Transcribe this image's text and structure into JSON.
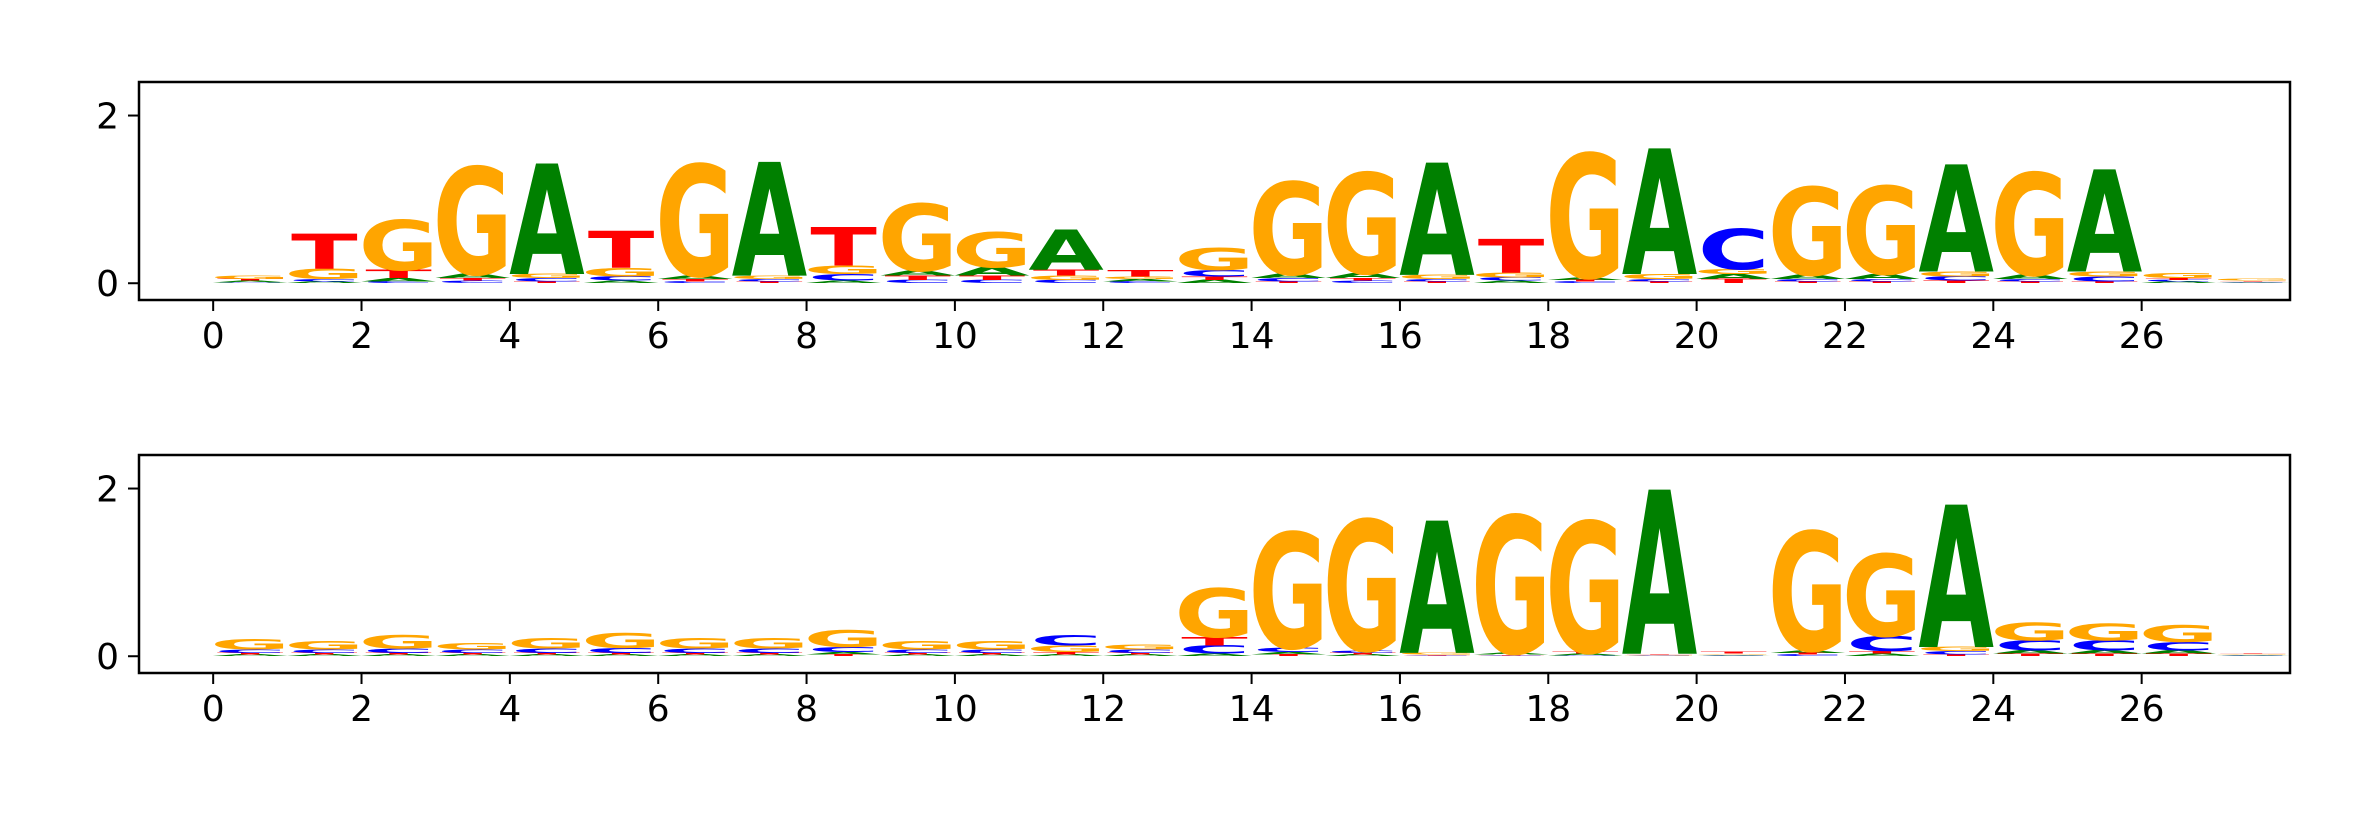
{
  "colors": {
    "A": "#008000",
    "C": "#0000ff",
    "G": "#ffa500",
    "T": "#ff0000"
  },
  "chart_data": [
    {
      "type": "sequence-logo",
      "xlim": [
        -1,
        28
      ],
      "ylim": [
        -0.2,
        2.4
      ],
      "yticks": [
        {
          "value": 0,
          "label": "0"
        },
        {
          "value": 2,
          "label": "2"
        }
      ],
      "xticks": [
        {
          "value": 0,
          "label": "0"
        },
        {
          "value": 2,
          "label": "2"
        },
        {
          "value": 4,
          "label": "4"
        },
        {
          "value": 6,
          "label": "6"
        },
        {
          "value": 8,
          "label": "8"
        },
        {
          "value": 10,
          "label": "10"
        },
        {
          "value": 12,
          "label": "12"
        },
        {
          "value": 14,
          "label": "14"
        },
        {
          "value": 16,
          "label": "16"
        },
        {
          "value": 18,
          "label": "18"
        },
        {
          "value": 20,
          "label": "20"
        },
        {
          "value": 22,
          "label": "22"
        },
        {
          "value": 24,
          "label": "24"
        },
        {
          "value": 26,
          "label": "26"
        }
      ],
      "positions": [
        {
          "A": 0.02,
          "C": 0.01,
          "G": 0.04,
          "T": 0.02
        },
        {
          "A": 0.02,
          "C": 0.03,
          "G": 0.12,
          "T": 0.42
        },
        {
          "A": 0.04,
          "C": 0.02,
          "G": 0.6,
          "T": 0.1
        },
        {
          "A": 0.05,
          "C": 0.03,
          "G": 1.28,
          "T": 0.03
        },
        {
          "A": 1.32,
          "C": 0.04,
          "G": 0.05,
          "T": 0.02
        },
        {
          "A": 0.03,
          "C": 0.05,
          "G": 0.1,
          "T": 0.44
        },
        {
          "A": 0.04,
          "C": 0.02,
          "G": 1.33,
          "T": 0.03
        },
        {
          "A": 1.36,
          "C": 0.03,
          "G": 0.04,
          "T": 0.02
        },
        {
          "A": 0.03,
          "C": 0.08,
          "G": 0.1,
          "T": 0.46
        },
        {
          "A": 0.06,
          "C": 0.04,
          "G": 0.8,
          "T": 0.05
        },
        {
          "A": 0.1,
          "C": 0.04,
          "G": 0.42,
          "T": 0.05
        },
        {
          "A": 0.48,
          "C": 0.04,
          "G": 0.05,
          "T": 0.07
        },
        {
          "A": 0.03,
          "C": 0.02,
          "G": 0.03,
          "T": 0.08
        },
        {
          "A": 0.04,
          "C": 0.08,
          "G": 0.26,
          "T": 0.04
        },
        {
          "A": 0.05,
          "C": 0.04,
          "G": 1.1,
          "T": 0.02
        },
        {
          "A": 0.06,
          "C": 0.03,
          "G": 1.2,
          "T": 0.03
        },
        {
          "A": 1.34,
          "C": 0.03,
          "G": 0.05,
          "T": 0.02
        },
        {
          "A": 0.03,
          "C": 0.04,
          "G": 0.06,
          "T": 0.4
        },
        {
          "A": 0.03,
          "C": 0.02,
          "G": 1.48,
          "T": 0.02
        },
        {
          "A": 1.5,
          "C": 0.03,
          "G": 0.06,
          "T": 0.02
        },
        {
          "A": 0.06,
          "C": 0.48,
          "G": 0.06,
          "T": 0.05
        },
        {
          "A": 0.05,
          "C": 0.03,
          "G": 1.05,
          "T": 0.02
        },
        {
          "A": 0.06,
          "C": 0.03,
          "G": 1.05,
          "T": 0.02
        },
        {
          "A": 1.28,
          "C": 0.05,
          "G": 0.06,
          "T": 0.03
        },
        {
          "A": 0.05,
          "C": 0.03,
          "G": 1.22,
          "T": 0.02
        },
        {
          "A": 1.22,
          "C": 0.06,
          "G": 0.06,
          "T": 0.02
        },
        {
          "A": 0.02,
          "C": 0.02,
          "G": 0.06,
          "T": 0.02
        },
        {
          "A": 0.01,
          "C": 0.01,
          "G": 0.02,
          "T": 0.01
        }
      ]
    },
    {
      "type": "sequence-logo",
      "xlim": [
        -1,
        28
      ],
      "ylim": [
        -0.2,
        2.4
      ],
      "yticks": [
        {
          "value": 0,
          "label": "0"
        },
        {
          "value": 2,
          "label": "2"
        }
      ],
      "xticks": [
        {
          "value": 0,
          "label": "0"
        },
        {
          "value": 2,
          "label": "2"
        },
        {
          "value": 4,
          "label": "4"
        },
        {
          "value": 6,
          "label": "6"
        },
        {
          "value": 8,
          "label": "8"
        },
        {
          "value": 10,
          "label": "10"
        },
        {
          "value": 12,
          "label": "12"
        },
        {
          "value": 14,
          "label": "14"
        },
        {
          "value": 16,
          "label": "16"
        },
        {
          "value": 18,
          "label": "18"
        },
        {
          "value": 20,
          "label": "20"
        },
        {
          "value": 22,
          "label": "22"
        },
        {
          "value": 24,
          "label": "24"
        },
        {
          "value": 26,
          "label": "26"
        }
      ],
      "positions": [
        {
          "A": 0.02,
          "C": 0.04,
          "G": 0.12,
          "T": 0.02
        },
        {
          "A": 0.02,
          "C": 0.04,
          "G": 0.1,
          "T": 0.02
        },
        {
          "A": 0.02,
          "C": 0.05,
          "G": 0.16,
          "T": 0.02
        },
        {
          "A": 0.02,
          "C": 0.04,
          "G": 0.08,
          "T": 0.02
        },
        {
          "A": 0.02,
          "C": 0.05,
          "G": 0.12,
          "T": 0.02
        },
        {
          "A": 0.02,
          "C": 0.06,
          "G": 0.18,
          "T": 0.02
        },
        {
          "A": 0.02,
          "C": 0.05,
          "G": 0.12,
          "T": 0.02
        },
        {
          "A": 0.02,
          "C": 0.05,
          "G": 0.12,
          "T": 0.02
        },
        {
          "A": 0.03,
          "C": 0.06,
          "G": 0.2,
          "T": 0.02
        },
        {
          "A": 0.02,
          "C": 0.04,
          "G": 0.1,
          "T": 0.02
        },
        {
          "A": 0.02,
          "C": 0.04,
          "G": 0.1,
          "T": 0.02
        },
        {
          "A": 0.02,
          "C": 0.12,
          "G": 0.08,
          "T": 0.03
        },
        {
          "A": 0.02,
          "C": 0.04,
          "G": 0.06,
          "T": 0.02
        },
        {
          "A": 0.03,
          "C": 0.1,
          "G": 0.58,
          "T": 0.1
        },
        {
          "A": 0.03,
          "C": 0.05,
          "G": 1.38,
          "T": 0.02
        },
        {
          "A": 0.02,
          "C": 0.03,
          "G": 1.56,
          "T": 0.02
        },
        {
          "A": 1.58,
          "C": 0.01,
          "G": 0.02,
          "T": 0.01
        },
        {
          "A": 0.02,
          "C": 0.01,
          "G": 1.64,
          "T": 0.01
        },
        {
          "A": 0.02,
          "C": 0.01,
          "G": 1.56,
          "T": 0.02
        },
        {
          "A": 1.96,
          "C": 0.01,
          "G": 0.01,
          "T": 0.01
        },
        {
          "A": 0.01,
          "C": 0.01,
          "G": 0.01,
          "T": 0.02
        },
        {
          "A": 0.03,
          "C": 0.02,
          "G": 1.42,
          "T": 0.02
        },
        {
          "A": 0.03,
          "C": 0.18,
          "G": 0.98,
          "T": 0.03
        },
        {
          "A": 1.7,
          "C": 0.04,
          "G": 0.05,
          "T": 0.02
        },
        {
          "A": 0.04,
          "C": 0.12,
          "G": 0.22,
          "T": 0.03
        },
        {
          "A": 0.04,
          "C": 0.12,
          "G": 0.2,
          "T": 0.03
        },
        {
          "A": 0.04,
          "C": 0.1,
          "G": 0.2,
          "T": 0.03
        },
        {
          "A": 0.01,
          "C": 0.01,
          "G": 0.01,
          "T": 0.01
        }
      ]
    }
  ]
}
